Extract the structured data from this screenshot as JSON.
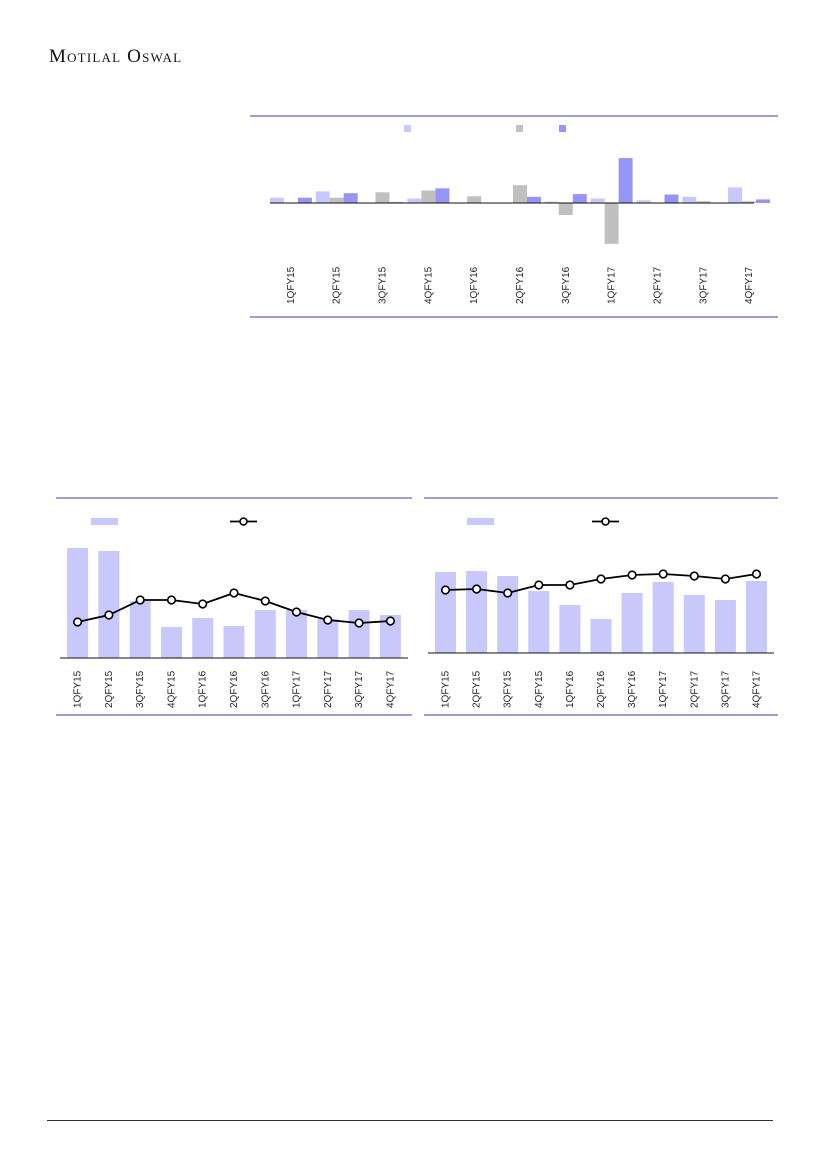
{
  "header": {
    "logo_text": "Motilal Oswal"
  },
  "colors": {
    "rule": "#3b3fa0",
    "series_light": "#c8c8fa",
    "series_grey": "#c0c0c0",
    "series_blue": "#9595f5",
    "line": "#000000"
  },
  "chart_data": [
    {
      "type": "bar",
      "categories": [
        "1QFY15",
        "2QFY15",
        "3QFY15",
        "4QFY15",
        "1QFY16",
        "2QFY16",
        "3QFY16",
        "1QFY17",
        "2QFY17",
        "3QFY17",
        "4QFY17"
      ],
      "series": [
        {
          "values": [
            1.2,
            2.6,
            0,
            1.0,
            0,
            0,
            0.3,
            1.0,
            0.6,
            1.4,
            3.5
          ]
        },
        {
          "values": [
            0,
            1.2,
            2.4,
            2.8,
            1.5,
            4.0,
            -2.7,
            -9.2,
            0,
            0.4,
            0.4
          ]
        },
        {
          "values": [
            1.2,
            2.2,
            0.2,
            3.3,
            0,
            1.4,
            2.0,
            10.1,
            1.9,
            0,
            0.8
          ]
        }
      ],
      "ylim": [
        -12,
        14
      ],
      "legend": "top"
    },
    {
      "type": "bar",
      "categories": [
        "1QFY15",
        "2QFY15",
        "3QFY15",
        "4QFY15",
        "1QFY16",
        "2QFY16",
        "3QFY16",
        "1QFY17",
        "2QFY17",
        "3QFY17",
        "4QFY17"
      ],
      "series": [
        {
          "values": [
            110,
            107,
            57,
            31,
            40,
            32,
            48,
            48,
            39,
            48,
            43
          ]
        },
        {
          "values": [
            36,
            43,
            58,
            58,
            54,
            65,
            57,
            46,
            38,
            35,
            37
          ]
        }
      ],
      "ylim": [
        0,
        125
      ],
      "legend": "top"
    },
    {
      "type": "bar",
      "categories": [
        "1QFY15",
        "2QFY15",
        "3QFY15",
        "4QFY15",
        "1QFY16",
        "2QFY16",
        "3QFY16",
        "1QFY17",
        "2QFY17",
        "3QFY17",
        "4QFY17"
      ],
      "series": [
        {
          "values": [
            81,
            82,
            77,
            62,
            48,
            34,
            60,
            71,
            58,
            53,
            72
          ]
        },
        {
          "values": [
            63,
            64,
            60,
            68,
            68,
            74,
            78,
            79,
            77,
            74,
            79
          ]
        }
      ],
      "ylim": [
        0,
        105
      ],
      "legend": "top"
    }
  ]
}
